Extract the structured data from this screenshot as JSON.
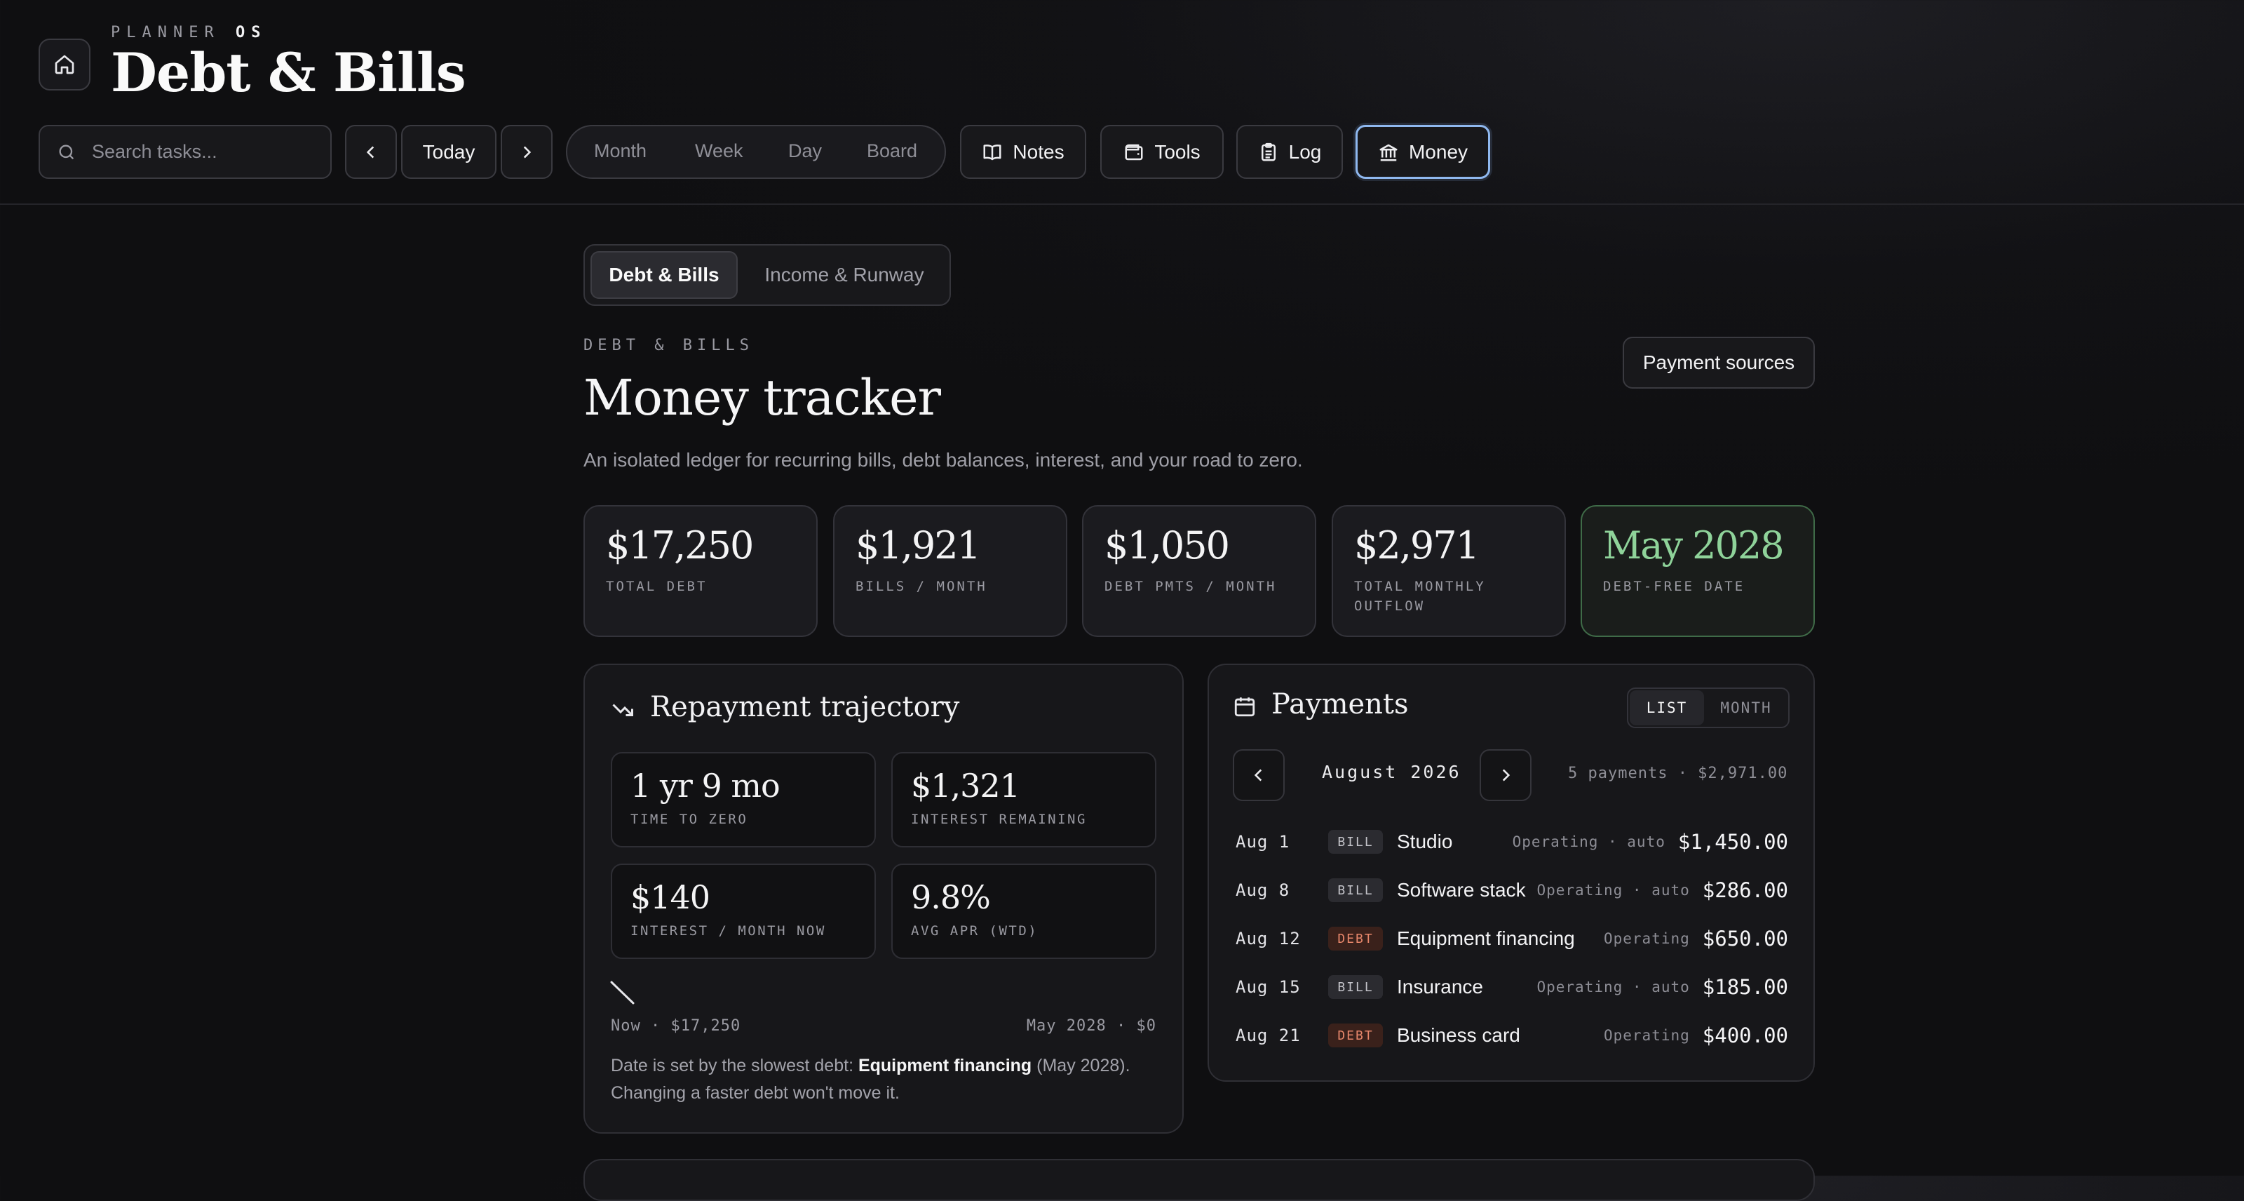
{
  "brand": {
    "prefix": "PLANNER",
    "suffix": "OS"
  },
  "app_title": "Debt & Bills",
  "search": {
    "placeholder": "Search tasks..."
  },
  "toolbar": {
    "today_label": "Today",
    "views": [
      "Month",
      "Week",
      "Day",
      "Board"
    ],
    "notes_label": "Notes",
    "tools_label": "Tools",
    "log_label": "Log",
    "money_label": "Money"
  },
  "subtabs": {
    "active": "Debt & Bills",
    "other": "Income & Runway"
  },
  "section": {
    "eyebrow": "DEBT & BILLS",
    "title": "Money tracker",
    "description": "An isolated ledger for recurring bills, debt balances, interest, and your road to zero.",
    "payment_sources_label": "Payment sources"
  },
  "stats": [
    {
      "value": "$17,250",
      "label": "TOTAL DEBT"
    },
    {
      "value": "$1,921",
      "label": "BILLS / MONTH"
    },
    {
      "value": "$1,050",
      "label": "DEBT PMTS / MONTH"
    },
    {
      "value": "$2,971",
      "label": "TOTAL MONTHLY OUTFLOW"
    },
    {
      "value": "May 2028",
      "label": "DEBT-FREE DATE"
    }
  ],
  "trajectory": {
    "title": "Repayment trajectory",
    "metrics": [
      {
        "value": "1 yr 9 mo",
        "label": "TIME TO ZERO"
      },
      {
        "value": "$1,321",
        "label": "INTEREST REMAINING"
      },
      {
        "value": "$140",
        "label": "INTEREST / MONTH NOW"
      },
      {
        "value": "9.8%",
        "label": "AVG APR (WTD)"
      }
    ],
    "start_caption": "Now · $17,250",
    "end_caption": "May 2028 · $0",
    "note_prefix": "Date is set by the slowest debt: ",
    "note_debt": "Equipment financing",
    "note_suffix": " (May 2028). Changing a faster debt won't move it."
  },
  "payments": {
    "title": "Payments",
    "view_list": "LIST",
    "view_month": "MONTH",
    "month": "August 2026",
    "summary": "5 payments · $2,971.00",
    "rows": [
      {
        "date": "Aug 1",
        "tag": "BILL",
        "name": "Studio",
        "source": "Operating · auto",
        "amount": "$1,450.00"
      },
      {
        "date": "Aug 8",
        "tag": "BILL",
        "name": "Software stack",
        "source": "Operating · auto",
        "amount": "$286.00"
      },
      {
        "date": "Aug 12",
        "tag": "DEBT",
        "name": "Equipment financing",
        "source": "Operating",
        "amount": "$650.00"
      },
      {
        "date": "Aug 15",
        "tag": "BILL",
        "name": "Insurance",
        "source": "Operating · auto",
        "amount": "$185.00"
      },
      {
        "date": "Aug 21",
        "tag": "DEBT",
        "name": "Business card",
        "source": "Operating",
        "amount": "$400.00"
      }
    ]
  },
  "colors": {
    "accent_blue": "#8fb8ef",
    "debt_free_green": "#8fd39a",
    "debt_tag": "#e7876b"
  }
}
